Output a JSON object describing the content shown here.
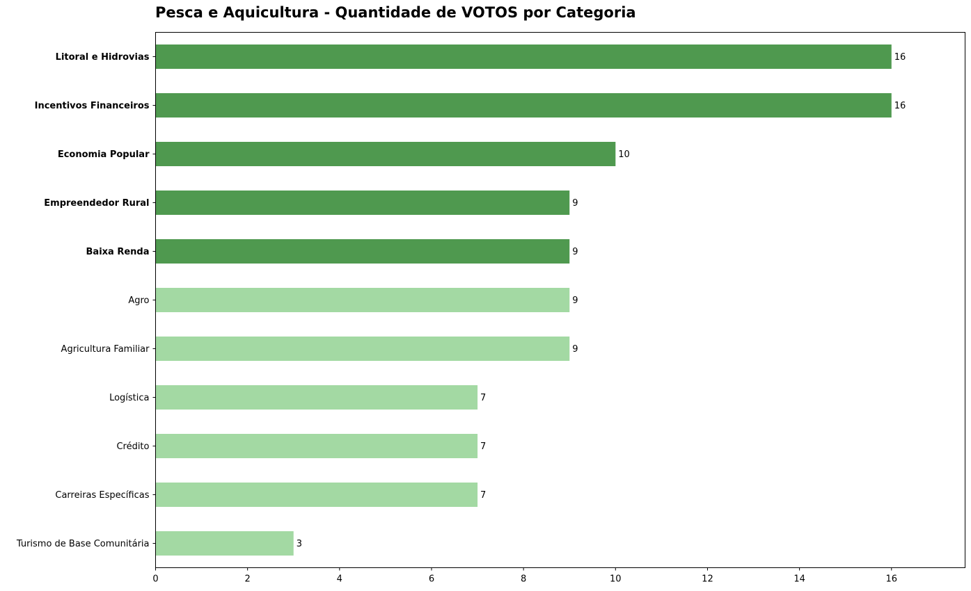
{
  "chart_data": {
    "type": "bar",
    "orientation": "horizontal",
    "title": "Pesca e Aquicultura - Quantidade de VOTOS por Categoria",
    "xlabel": "",
    "ylabel": "",
    "xlim": [
      0,
      17.6
    ],
    "xticks": [
      0,
      2,
      4,
      6,
      8,
      10,
      12,
      14,
      16
    ],
    "grid": false,
    "categories": [
      "Litoral e Hidrovias",
      "Incentivos Financeiros",
      "Economia Popular",
      "Empreendedor Rural",
      "Baixa Renda",
      "Agro",
      "Agricultura Familiar",
      "Logística",
      "Crédito",
      "Carreiras Específicas",
      "Turismo de Base Comunitária"
    ],
    "values": [
      16,
      16,
      10,
      9,
      9,
      9,
      9,
      7,
      7,
      7,
      3
    ],
    "highlighted": [
      true,
      true,
      true,
      true,
      true,
      false,
      false,
      false,
      false,
      false,
      false
    ],
    "colors": {
      "highlight": "#4f994f",
      "normal": "#a3d9a3",
      "axis": "#000000"
    }
  }
}
